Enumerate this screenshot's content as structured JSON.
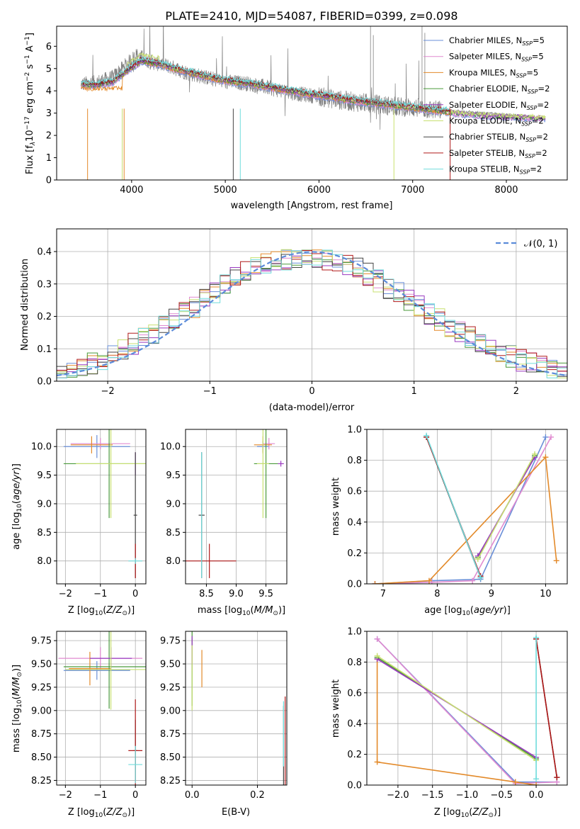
{
  "chart_data": [
    {
      "type": "line",
      "title": "PLATE=2410, MJD=54087, FIBERID=0399, z=0.098",
      "xlabel": "wavelength [Angstrom, rest frame]",
      "ylabel": "Flux [f_λ 10^-17 erg cm^-2 s^-1 A^-1]",
      "xlim": [
        3200,
        8650
      ],
      "ylim": [
        0,
        6.9
      ],
      "xticks": [
        "4000",
        "5000",
        "6000",
        "7000",
        "8000"
      ],
      "yticks": [
        "0",
        "1",
        "2",
        "3",
        "4",
        "5",
        "6"
      ],
      "legend": "top-right",
      "data_color": "#808080",
      "observed_anchors": {
        "x": [
          3460,
          3600,
          3800,
          3950,
          4050,
          4200,
          4400,
          4600,
          4800,
          5000,
          5200,
          5400,
          5600,
          5800,
          6000,
          6200,
          6400,
          6600,
          6800,
          7000,
          7200,
          7400
        ],
        "y": [
          4.3,
          4.35,
          4.6,
          5.2,
          5.6,
          5.3,
          5.1,
          4.8,
          4.6,
          4.4,
          4.35,
          4.2,
          4.0,
          3.85,
          3.75,
          3.6,
          3.5,
          3.4,
          3.3,
          3.25,
          3.15,
          3.1
        ]
      },
      "series": [
        {
          "name": "Chabrier MILES, N_SSP=5",
          "color": "#6a8fd8"
        },
        {
          "name": "Salpeter MILES, N_SSP=5",
          "color": "#e08ad0"
        },
        {
          "name": "Kroupa MILES, N_SSP=5",
          "color": "#e38a2a"
        },
        {
          "name": "Chabrier ELODIE, N_SSP=2",
          "color": "#4a9a3a"
        },
        {
          "name": "Salpeter ELODIE, N_SSP=2",
          "color": "#9a3ac0"
        },
        {
          "name": "Kroupa ELODIE, N_SSP=2",
          "color": "#c8e070"
        },
        {
          "name": "Chabrier STELIB, N_SSP=2",
          "color": "#444444"
        },
        {
          "name": "Salpeter STELIB, N_SSP=2",
          "color": "#b01a1a"
        },
        {
          "name": "Kroupa STELIB, N_SSP=2",
          "color": "#70dcdc"
        }
      ],
      "model_anchors": {
        "x": [
          3460,
          3600,
          3800,
          3950,
          4100,
          4300,
          4500,
          4700,
          4900,
          5100,
          5300,
          5500,
          5700,
          5900,
          6100,
          6300,
          6500,
          6700,
          6900,
          7100,
          7300,
          7500,
          7800,
          8100,
          8400
        ],
        "y": [
          4.3,
          4.25,
          4.4,
          4.9,
          5.35,
          5.2,
          4.95,
          4.75,
          4.55,
          4.4,
          4.3,
          4.15,
          4.0,
          3.85,
          3.75,
          3.6,
          3.5,
          3.4,
          3.3,
          3.2,
          3.1,
          3.0,
          2.9,
          2.85,
          2.8
        ]
      }
    },
    {
      "type": "line",
      "xlabel": "(data-model)/error",
      "ylabel": "Normed distribution",
      "xlim": [
        -2.5,
        2.5
      ],
      "ylim": [
        0,
        0.47
      ],
      "xticks": [
        "−2",
        "−1",
        "0",
        "1",
        "2"
      ],
      "yticks": [
        "0.0",
        "0.1",
        "0.2",
        "0.3",
        "0.4"
      ],
      "legend": "top-right",
      "legend_label": "𝒩(0, 1)",
      "gauss_color": "#5b8bd9",
      "bin_width": 0.1,
      "histogram_anchors": {
        "x": [
          -2.5,
          -2.2,
          -1.9,
          -1.6,
          -1.3,
          -1.0,
          -0.7,
          -0.4,
          -0.1,
          0.2,
          0.5,
          0.8,
          1.1,
          1.4,
          1.7,
          2.0,
          2.3,
          2.5
        ],
        "y": [
          0.025,
          0.05,
          0.09,
          0.14,
          0.2,
          0.26,
          0.33,
          0.37,
          0.38,
          0.37,
          0.34,
          0.28,
          0.22,
          0.16,
          0.11,
          0.07,
          0.04,
          0.03
        ]
      }
    },
    {
      "type": "scatter",
      "xlabel": "Z [log10(Z/Z⊙)]",
      "ylabel": "age [log10(age/yr)]",
      "xlim": [
        -2.25,
        0.3
      ],
      "ylim": [
        7.6,
        10.3
      ],
      "xticks": [
        "−2",
        "−1",
        "0"
      ],
      "yticks": [
        "8.0",
        "8.5",
        "9.0",
        "9.5",
        "10.0"
      ],
      "points": [
        {
          "x": -1.1,
          "y": 10.0,
          "xerr": 0.95,
          "yerr": 0.2,
          "color": "#6a8fd8"
        },
        {
          "x": -1.0,
          "y": 10.05,
          "xerr": 0.85,
          "yerr": 0.1,
          "color": "#e08ad0"
        },
        {
          "x": -1.25,
          "y": 10.03,
          "xerr": 0.6,
          "yerr": 0.15,
          "color": "#e38a2a"
        },
        {
          "x": -0.75,
          "y": 9.7,
          "xerr": 1.3,
          "yerr": 0.95,
          "color": "#4a9a3a"
        },
        {
          "x": 0.0,
          "y": 9.7,
          "xerr": 0.0,
          "yerr": 0.2,
          "color": "#9a3ac0"
        },
        {
          "x": -0.7,
          "y": 9.7,
          "xerr": 1.0,
          "yerr": 0.95,
          "color": "#c8e070"
        },
        {
          "x": 0.0,
          "y": 8.8,
          "xerr": 0.05,
          "yerr": 1.1,
          "color": "#444444"
        },
        {
          "x": 0.0,
          "y": 8.0,
          "xerr": 0.0,
          "yerr": 0.3,
          "color": "#b01a1a"
        },
        {
          "x": 0.0,
          "y": 8.0,
          "xerr": 0.2,
          "yerr": 0.05,
          "color": "#70dcdc"
        }
      ]
    },
    {
      "type": "scatter",
      "xlabel": "mass [log10(M/M⊙)]",
      "ylabel": "",
      "xlim": [
        8.15,
        9.85
      ],
      "ylim": [
        7.6,
        10.3
      ],
      "xticks": [
        "8.5",
        "9.0",
        "9.5"
      ],
      "yticks": [
        "8.0",
        "8.5",
        "9.0",
        "9.5",
        "10.0"
      ],
      "points": [
        {
          "x": 9.45,
          "y": 10.0,
          "xerr": 0.1,
          "yerr": 0.1,
          "color": "#6a8fd8"
        },
        {
          "x": 9.55,
          "y": 10.05,
          "xerr": 0.1,
          "yerr": 0.1,
          "color": "#e08ad0"
        },
        {
          "x": 9.45,
          "y": 10.03,
          "xerr": 0.15,
          "yerr": 0.15,
          "color": "#e38a2a"
        },
        {
          "x": 9.5,
          "y": 9.7,
          "xerr": 0.2,
          "yerr": 0.95,
          "color": "#4a9a3a"
        },
        {
          "x": 9.75,
          "y": 9.7,
          "xerr": 0.05,
          "yerr": 0.05,
          "color": "#9a3ac0"
        },
        {
          "x": 9.45,
          "y": 9.7,
          "xerr": 0.1,
          "yerr": 0.95,
          "color": "#c8e070"
        },
        {
          "x": 8.42,
          "y": 8.8,
          "xerr": 0.05,
          "yerr": 1.1,
          "color": "#444444"
        },
        {
          "x": 8.55,
          "y": 8.0,
          "xerr": 0.45,
          "yerr": 0.3,
          "color": "#b01a1a"
        },
        {
          "x": 8.42,
          "y": 8.8,
          "xerr": 0.0,
          "yerr": 1.1,
          "color": "#70dcdc"
        }
      ]
    },
    {
      "type": "line",
      "xlabel": "age [log10(age/yr)]",
      "ylabel": "mass weight",
      "xlim": [
        6.7,
        10.4
      ],
      "ylim": [
        0,
        1.0
      ],
      "xticks": [
        "7",
        "8",
        "9",
        "10"
      ],
      "yticks": [
        "0.0",
        "0.2",
        "0.4",
        "0.6",
        "0.8",
        "1.0"
      ],
      "series": [
        {
          "color": "#6a8fd8",
          "x": [
            6.85,
            7.9,
            8.8,
            10.0
          ],
          "y": [
            0.0,
            0.02,
            0.03,
            0.95
          ]
        },
        {
          "color": "#e08ad0",
          "x": [
            6.85,
            7.9,
            8.65,
            10.1
          ],
          "y": [
            0.0,
            0.01,
            0.02,
            0.95
          ]
        },
        {
          "color": "#e38a2a",
          "x": [
            6.85,
            7.85,
            10.0,
            10.2
          ],
          "y": [
            0.0,
            0.02,
            0.82,
            0.15
          ]
        },
        {
          "color": "#4a9a3a",
          "x": [
            8.75,
            9.8
          ],
          "y": [
            0.17,
            0.83
          ]
        },
        {
          "color": "#9a3ac0",
          "x": [
            8.75,
            9.8
          ],
          "y": [
            0.18,
            0.82
          ]
        },
        {
          "color": "#c8e070",
          "x": [
            8.75,
            9.8
          ],
          "y": [
            0.16,
            0.84
          ]
        },
        {
          "color": "#444444",
          "x": [
            7.8,
            8.8
          ],
          "y": [
            0.95,
            0.04
          ]
        },
        {
          "color": "#b01a1a",
          "x": [
            7.8,
            8.8
          ],
          "y": [
            0.95,
            0.05
          ]
        },
        {
          "color": "#70dcdc",
          "x": [
            7.8,
            8.8
          ],
          "y": [
            0.96,
            0.04
          ]
        }
      ]
    },
    {
      "type": "scatter",
      "xlabel": "Z [log10(Z/Z⊙)]",
      "ylabel": "mass [log10(M/M⊙)]",
      "xlim": [
        -2.25,
        0.3
      ],
      "ylim": [
        8.2,
        9.85
      ],
      "xticks": [
        "−2",
        "−1",
        "0"
      ],
      "yticks": [
        "8.25",
        "8.50",
        "8.75",
        "9.00",
        "9.25",
        "9.50",
        "9.75"
      ],
      "points": [
        {
          "x": -1.1,
          "y": 9.43,
          "xerr": 0.95,
          "yerr": 0.1,
          "color": "#6a8fd8"
        },
        {
          "x": -1.0,
          "y": 9.56,
          "xerr": 1.2,
          "yerr": 0.12,
          "color": "#e08ad0"
        },
        {
          "x": -1.3,
          "y": 9.45,
          "xerr": 0.6,
          "yerr": 0.18,
          "color": "#e38a2a"
        },
        {
          "x": -0.75,
          "y": 9.47,
          "xerr": 1.3,
          "yerr": 0.45,
          "color": "#4a9a3a"
        },
        {
          "x": -0.7,
          "y": 9.56,
          "xerr": 0.6,
          "yerr": 0.12,
          "color": "#9a3ac0"
        },
        {
          "x": -0.7,
          "y": 9.44,
          "xerr": 1.3,
          "yerr": 0.43,
          "color": "#c8e070"
        },
        {
          "x": 0.0,
          "y": 8.57,
          "xerr": 0.05,
          "yerr": 0.33,
          "color": "#444444"
        },
        {
          "x": 0.0,
          "y": 8.57,
          "xerr": 0.2,
          "yerr": 0.55,
          "color": "#b01a1a"
        },
        {
          "x": 0.0,
          "y": 8.42,
          "xerr": 0.2,
          "yerr": 0.2,
          "color": "#70dcdc"
        }
      ]
    },
    {
      "type": "scatter",
      "xlabel": "E(B-V)",
      "ylabel": "",
      "xlim": [
        -0.02,
        0.29
      ],
      "ylim": [
        8.2,
        9.85
      ],
      "xticks": [
        "0.0",
        "0.2"
      ],
      "yticks": [
        "8.25",
        "8.50",
        "8.75",
        "9.00",
        "9.25",
        "9.50",
        "9.75"
      ],
      "points": [
        {
          "x": 0.0,
          "y": 9.45,
          "xerr": 0.0,
          "yerr": 0.2,
          "color": "#6a8fd8"
        },
        {
          "x": 0.0,
          "y": 9.6,
          "xerr": 0.0,
          "yerr": 0.18,
          "color": "#e08ad0"
        },
        {
          "x": 0.03,
          "y": 9.45,
          "xerr": 0.0,
          "yerr": 0.2,
          "color": "#e38a2a"
        },
        {
          "x": 0.0,
          "y": 9.45,
          "xerr": 0.0,
          "yerr": 0.4,
          "color": "#4a9a3a"
        },
        {
          "x": 0.0,
          "y": 9.65,
          "xerr": 0.0,
          "yerr": 0.15,
          "color": "#9a3ac0"
        },
        {
          "x": 0.0,
          "y": 9.35,
          "xerr": 0.0,
          "yerr": 0.35,
          "color": "#c8e070"
        },
        {
          "x": 0.28,
          "y": 8.55,
          "xerr": 0.0,
          "yerr": 0.5,
          "color": "#444444"
        },
        {
          "x": 0.285,
          "y": 8.6,
          "xerr": 0.0,
          "yerr": 0.55,
          "color": "#b01a1a"
        },
        {
          "x": 0.28,
          "y": 8.75,
          "xerr": 0.0,
          "yerr": 0.35,
          "color": "#70dcdc"
        }
      ]
    },
    {
      "type": "line",
      "xlabel": "Z [log10(Z/Z⊙)]",
      "ylabel": "mass weight",
      "xlim": [
        -2.45,
        0.45
      ],
      "ylim": [
        0,
        1.0
      ],
      "xticks": [
        "−2.0",
        "−1.5",
        "−1.0",
        "−0.5",
        "0.0"
      ],
      "yticks": [
        "0.0",
        "0.2",
        "0.4",
        "0.6",
        "0.8",
        "1.0"
      ],
      "series": [
        {
          "color": "#6a8fd8",
          "x": [
            -2.3,
            -0.3,
            0.3
          ],
          "y": [
            0.95,
            0.02,
            0.02
          ]
        },
        {
          "color": "#e08ad0",
          "x": [
            -2.3,
            -0.3,
            0.3
          ],
          "y": [
            0.95,
            0.01,
            0.02
          ]
        },
        {
          "color": "#e38a2a",
          "x": [
            -2.3,
            -2.3,
            -0.3,
            0.0
          ],
          "y": [
            0.82,
            0.15,
            0.02,
            0.0
          ]
        },
        {
          "color": "#4a9a3a",
          "x": [
            -2.3,
            0.0
          ],
          "y": [
            0.83,
            0.17
          ]
        },
        {
          "color": "#9a3ac0",
          "x": [
            -2.3,
            0.0
          ],
          "y": [
            0.82,
            0.18
          ]
        },
        {
          "color": "#c8e070",
          "x": [
            -2.3,
            0.0
          ],
          "y": [
            0.84,
            0.16
          ]
        },
        {
          "color": "#444444",
          "x": [
            0.0,
            0.3
          ],
          "y": [
            0.95,
            0.05
          ]
        },
        {
          "color": "#b01a1a",
          "x": [
            0.0,
            0.3
          ],
          "y": [
            0.95,
            0.05
          ]
        },
        {
          "color": "#70dcdc",
          "x": [
            0.0,
            0.0
          ],
          "y": [
            0.96,
            0.04
          ]
        }
      ]
    }
  ]
}
